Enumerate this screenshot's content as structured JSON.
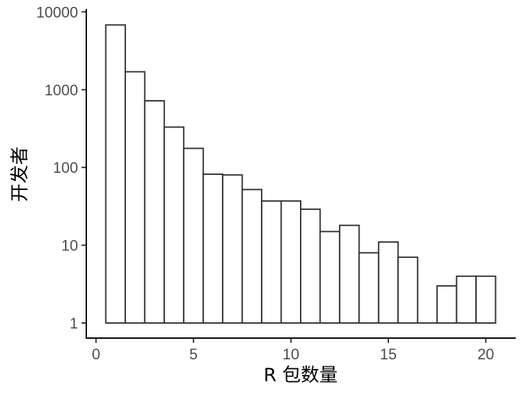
{
  "chart_data": {
    "type": "bar",
    "x": [
      1,
      2,
      3,
      4,
      5,
      6,
      7,
      8,
      9,
      10,
      11,
      12,
      13,
      14,
      15,
      16,
      17,
      18,
      19,
      20
    ],
    "values": [
      6800,
      1700,
      720,
      330,
      176,
      82,
      80,
      52,
      37,
      37,
      29,
      15,
      18,
      8,
      11,
      7,
      1,
      3,
      4,
      4
    ],
    "bar_width": 1,
    "xlabel": "R 包数量",
    "ylabel": "开发者",
    "xlim": [
      -0.5,
      21.5
    ],
    "ylim": [
      0.64,
      10700
    ],
    "yscale": "log",
    "xticks": [
      0,
      5,
      10,
      15,
      20
    ],
    "xtick_labels": [
      "0",
      "5",
      "10",
      "15",
      "20"
    ],
    "yticks": [
      1,
      10,
      100,
      1000,
      10000
    ],
    "ytick_labels": [
      "1",
      "10",
      "100",
      "1000",
      "10000"
    ],
    "grid": false,
    "colors": {
      "bar_fill": "#ffffff",
      "bar_outline": "#333333",
      "axis": "#000000",
      "tick_label": "#4d4d4d"
    }
  }
}
